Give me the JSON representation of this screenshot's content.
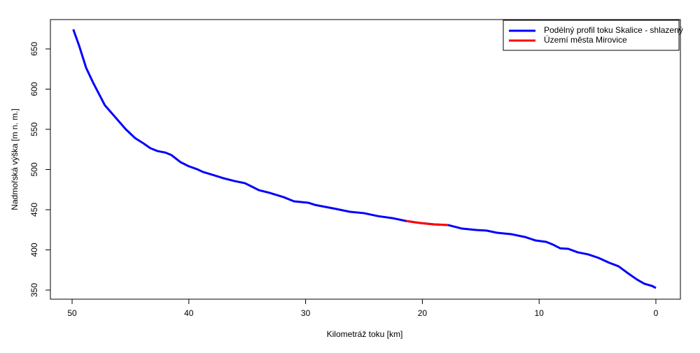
{
  "chart_data": {
    "type": "line",
    "xlabel": "Kilometráž toku [km]",
    "ylabel": "Nadmořská výška [m n. m.]",
    "xlim": [
      51.86,
      -2.1
    ],
    "ylim": [
      338.7,
      686.5
    ],
    "xticks": [
      50,
      40,
      30,
      20,
      10,
      0
    ],
    "yticks": [
      350,
      400,
      450,
      500,
      550,
      600,
      650
    ],
    "legend": "topright",
    "series": [
      {
        "name": "Podélný profil toku Skalice - shlazený",
        "color": "#0000ff",
        "x": [
          49.9,
          49.4,
          48.8,
          48.2,
          47.2,
          46.3,
          45.4,
          44.6,
          43.9,
          43.3,
          42.7,
          42.0,
          41.5,
          40.7,
          40.0,
          39.3,
          38.8,
          38.0,
          37.0,
          36.1,
          35.2,
          34.6,
          34.0,
          33.1,
          31.9,
          31.0,
          29.8,
          29.2,
          28.3,
          27.4,
          26.2,
          25.0,
          23.8,
          22.6,
          21.4,
          20.2,
          19.0,
          17.8,
          16.6,
          15.4,
          14.5,
          13.6,
          12.4,
          11.2,
          10.3,
          9.4,
          8.8,
          8.2,
          7.5,
          6.7,
          5.8,
          4.9,
          4.0,
          3.2,
          2.3,
          1.6,
          1.0,
          0.3,
          0.0
        ],
        "values": [
          674.3,
          654,
          626.5,
          608,
          580,
          565,
          550,
          539,
          532.6,
          526.5,
          523,
          521,
          518,
          509,
          504,
          500.4,
          497,
          493.5,
          489,
          485.7,
          483,
          478.7,
          474.3,
          471,
          465.7,
          460.4,
          458.7,
          456,
          453.5,
          451,
          447.4,
          445.7,
          442,
          439.6,
          436,
          433.5,
          431.7,
          430.9,
          426.5,
          424.8,
          424,
          421.3,
          419.6,
          416,
          411.7,
          410,
          406.5,
          402,
          401.3,
          397,
          394.4,
          390,
          384,
          379.6,
          370,
          363,
          358,
          355,
          352.6
        ]
      },
      {
        "name": "Území města Mirovice",
        "color": "#ff0000",
        "x": [
          21.4,
          20.2,
          19.0,
          17.8
        ],
        "values": [
          436,
          433.5,
          431.7,
          430.9
        ]
      }
    ]
  }
}
